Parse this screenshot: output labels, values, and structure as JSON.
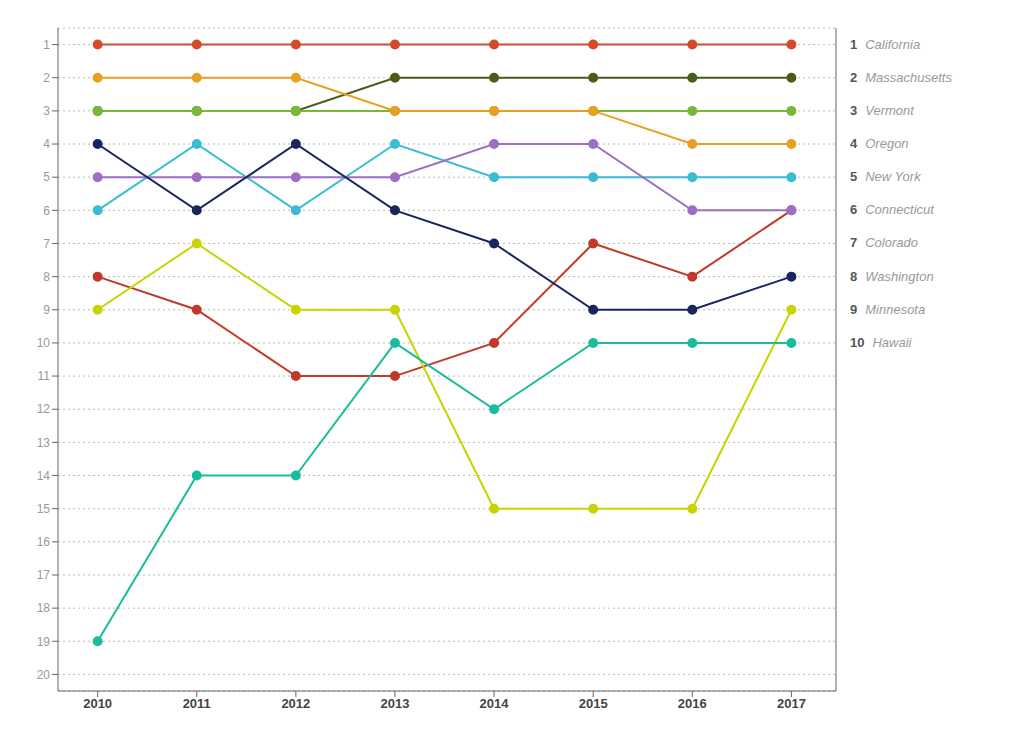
{
  "chart_data": {
    "type": "line",
    "x": [
      2010,
      2011,
      2012,
      2013,
      2014,
      2015,
      2016,
      2017
    ],
    "series": [
      {
        "name": "California",
        "rank": 1,
        "color": "#d44a2a",
        "values": [
          1,
          1,
          1,
          1,
          1,
          1,
          1,
          1
        ]
      },
      {
        "name": "Massachusetts",
        "rank": 2,
        "color": "#4a5c1a",
        "values": [
          3,
          3,
          3,
          2,
          2,
          2,
          2,
          2
        ]
      },
      {
        "name": "Vermont",
        "rank": 3,
        "color": "#7ab83a",
        "values": [
          3,
          3,
          3,
          3,
          3,
          3,
          3,
          3
        ]
      },
      {
        "name": "Oregon",
        "rank": 4,
        "color": "#e8a020",
        "values": [
          2,
          2,
          2,
          3,
          3,
          3,
          4,
          4
        ]
      },
      {
        "name": "New York",
        "rank": 5,
        "color": "#3bbbd4",
        "values": [
          6,
          4,
          6,
          4,
          5,
          5,
          5,
          5
        ]
      },
      {
        "name": "Connecticut",
        "rank": 6,
        "color": "#c0392b",
        "values": [
          8,
          9,
          11,
          11,
          10,
          7,
          8,
          6
        ]
      },
      {
        "name": "Colorado",
        "rank": 7,
        "color": "#9b70c4",
        "values": [
          5,
          5,
          5,
          5,
          4,
          4,
          6,
          6
        ]
      },
      {
        "name": "Washington",
        "rank": 8,
        "color": "#1a2560",
        "values": [
          4,
          6,
          4,
          6,
          7,
          9,
          9,
          8
        ]
      },
      {
        "name": "Minnesota",
        "rank": 9,
        "color": "#c8d400",
        "values": [
          9,
          7,
          9,
          9,
          15,
          15,
          15,
          9
        ]
      },
      {
        "name": "Hawaii",
        "rank": 10,
        "color": "#1abc9c",
        "values": [
          19,
          14,
          14,
          10,
          12,
          10,
          10,
          10
        ]
      }
    ],
    "xlim": [
      2009.6,
      2017.45
    ],
    "xticks": [
      2010,
      2011,
      2012,
      2013,
      2014,
      2015,
      2016,
      2017
    ],
    "ylim": [
      20.5,
      0.5
    ],
    "yticks": [
      1,
      2,
      3,
      4,
      5,
      6,
      7,
      8,
      9,
      10,
      11,
      12,
      13,
      14,
      15,
      16,
      17,
      18,
      19,
      20
    ],
    "grid": true,
    "marker": "circle"
  }
}
